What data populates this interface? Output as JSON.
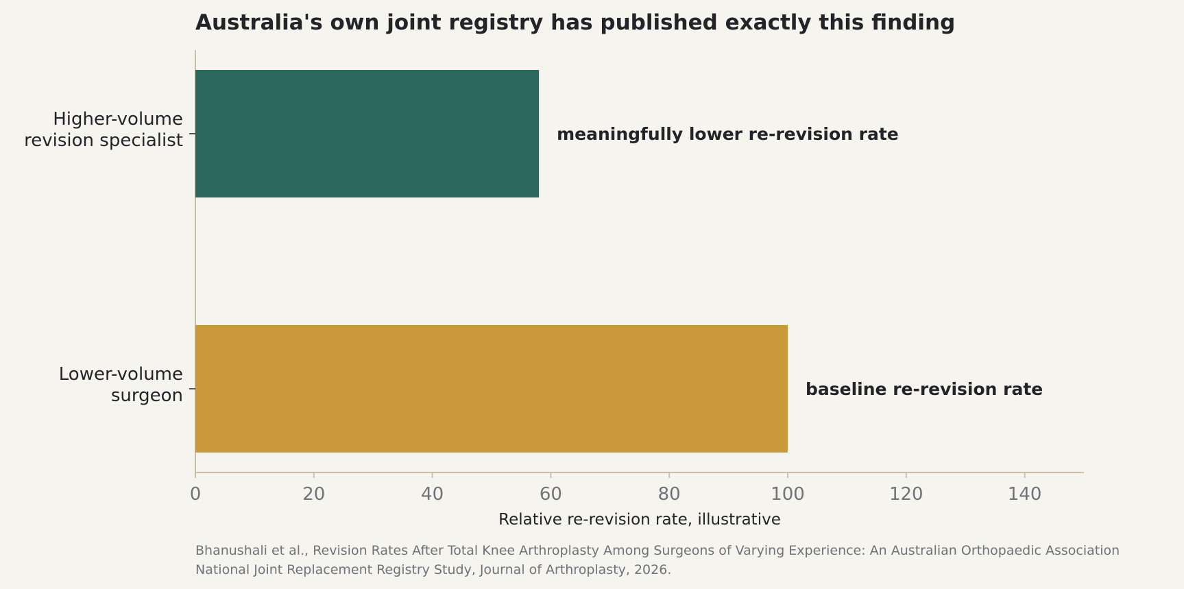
{
  "chart_data": {
    "type": "bar",
    "orientation": "horizontal",
    "title": "Australia's own joint registry has published exactly this finding",
    "xlabel": "Relative re-revision rate, illustrative",
    "ylabel": "",
    "xlim": [
      0,
      150
    ],
    "xticks": [
      0,
      20,
      40,
      60,
      80,
      100,
      120,
      140
    ],
    "grid": false,
    "categories": [
      [
        "Higher-volume",
        "revision specialist"
      ],
      [
        "Lower-volume",
        "surgeon"
      ]
    ],
    "values": [
      58,
      100
    ],
    "colors": [
      "#2a685e",
      "#c9993a"
    ],
    "bar_labels": [
      "meaningfully lower re-revision rate",
      "baseline re-revision rate"
    ],
    "source": [
      "Bhanushali et al., Revision Rates After Total Knee Arthroplasty Among Surgeons of Varying Experience: An Australian Orthopaedic Association",
      "National Joint Replacement Registry Study, Journal of Arthroplasty, 2026."
    ]
  },
  "theme": {
    "background": "#f5f4ef",
    "axis_color": "#c9bfa8",
    "text_color": "#222428",
    "muted_text": "#6f7377"
  }
}
